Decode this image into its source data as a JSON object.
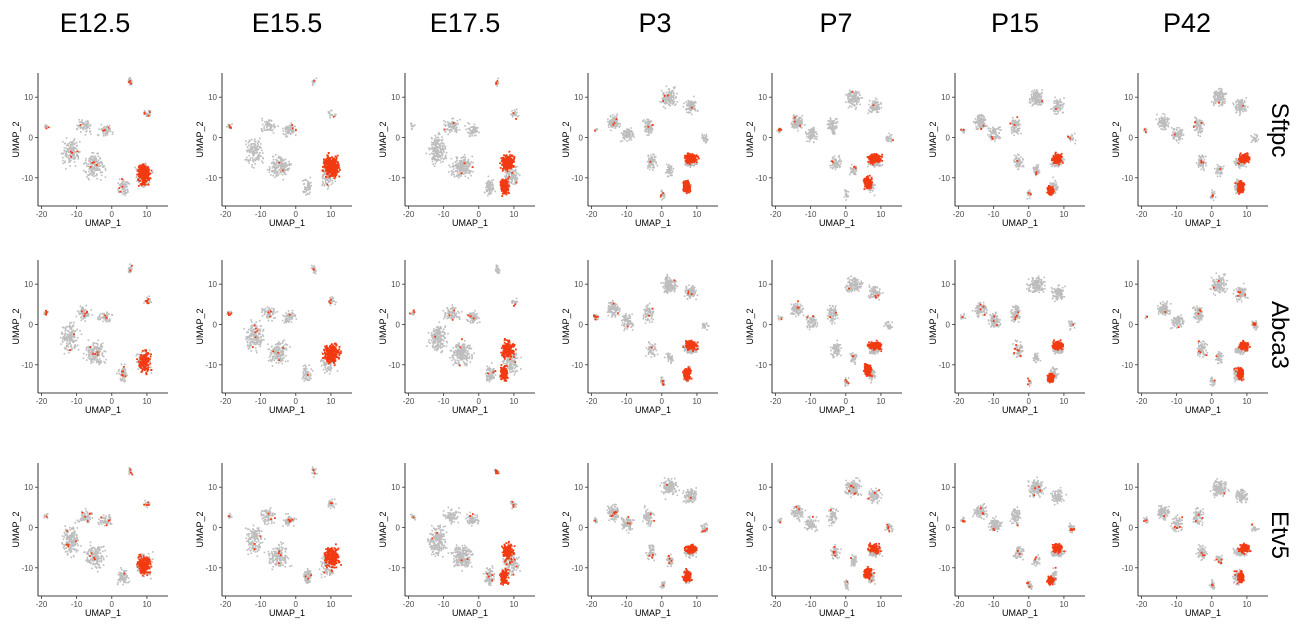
{
  "chart_data": {
    "type": "scatter",
    "layout": "grid",
    "columns": [
      "E12.5",
      "E15.5",
      "E17.5",
      "P3",
      "P7",
      "P15",
      "P42"
    ],
    "rows": [
      "Sftpc",
      "Abca3",
      "Etv5"
    ],
    "xlabel": "UMAP_1",
    "ylabel": "UMAP_2",
    "xticks": [
      -20,
      -10,
      0,
      10
    ],
    "yticks": [
      10,
      0,
      -10
    ],
    "xlim": [
      -21,
      16
    ],
    "ylim": [
      -17,
      16
    ],
    "colors": {
      "background_cells": "#bdbdbd",
      "expressing_cells": "#f23a12"
    },
    "expression_strength": [
      [
        0.55,
        0.95,
        0.9,
        0.85,
        0.85,
        0.75,
        0.75
      ],
      [
        0.35,
        0.6,
        0.75,
        0.7,
        0.7,
        0.6,
        0.55
      ],
      [
        0.45,
        0.55,
        0.6,
        0.5,
        0.5,
        0.4,
        0.5
      ]
    ]
  }
}
